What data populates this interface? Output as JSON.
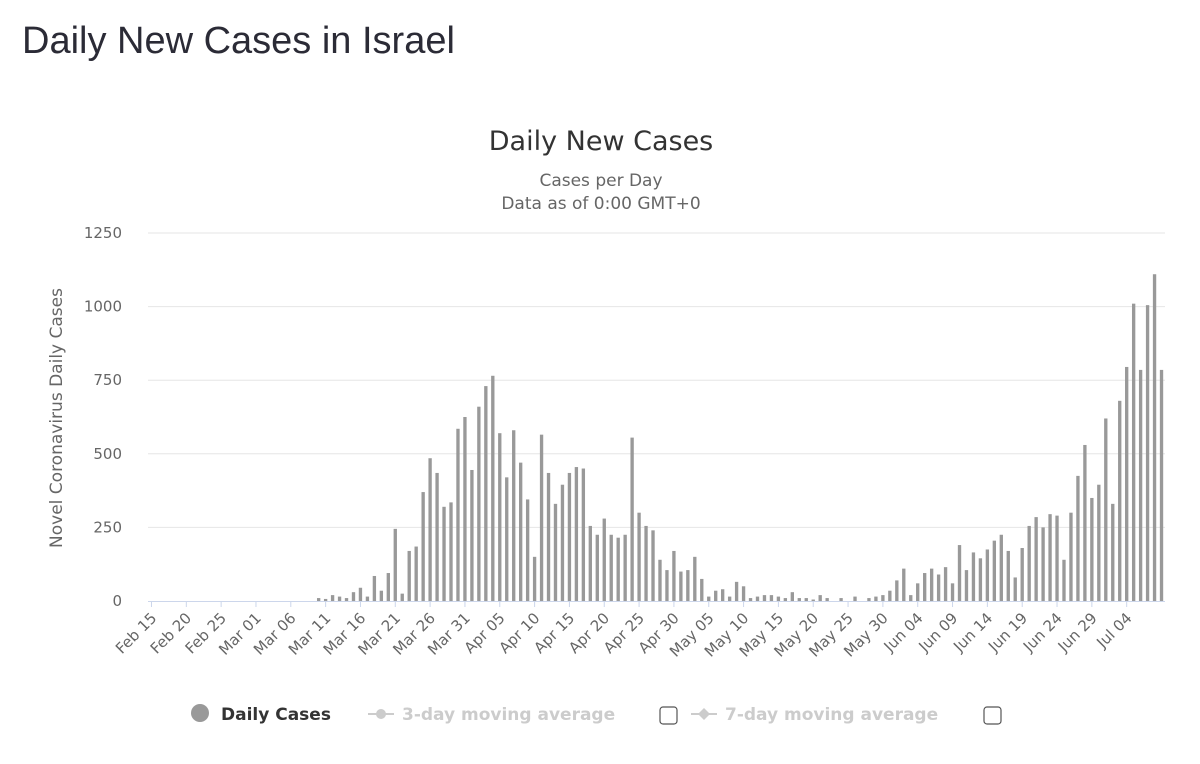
{
  "page": {
    "title": "Daily New Cases in Israel"
  },
  "colors": {
    "bar": "#999999",
    "grid": "#e6e6e6",
    "axis": "#ccd6eb",
    "legend_off": "#cccccc",
    "text": "#333333",
    "subtext": "#666666"
  },
  "chart_data": {
    "type": "bar",
    "title": "Daily New Cases",
    "subtitle": "Cases per Day",
    "subtitle2": "Data as of 0:00 GMT+0",
    "xlabel": "",
    "ylabel": "Novel Coronavirus Daily Cases",
    "ylim": [
      0,
      1250
    ],
    "yticks": [
      0,
      250,
      500,
      750,
      1000,
      1250
    ],
    "grid": true,
    "start_date": "Feb 15",
    "xtick_labels": [
      "Feb 15",
      "Feb 20",
      "Feb 25",
      "Mar 01",
      "Mar 06",
      "Mar 11",
      "Mar 16",
      "Mar 21",
      "Mar 26",
      "Mar 31",
      "Apr 05",
      "Apr 10",
      "Apr 15",
      "Apr 20",
      "Apr 25",
      "Apr 30",
      "May 05",
      "May 10",
      "May 15",
      "May 20",
      "May 25",
      "May 30",
      "Jun 04",
      "Jun 09",
      "Jun 14",
      "Jun 19",
      "Jun 24",
      "Jun 29",
      "Jul 04"
    ],
    "series": [
      {
        "name": "Daily Cases",
        "values": [
          0,
          0,
          0,
          0,
          0,
          0,
          0,
          0,
          0,
          0,
          0,
          0,
          0,
          0,
          0,
          0,
          0,
          0,
          0,
          0,
          0,
          0,
          0,
          0,
          10,
          7,
          20,
          15,
          10,
          30,
          45,
          15,
          85,
          35,
          95,
          245,
          25,
          170,
          185,
          370,
          485,
          435,
          320,
          335,
          585,
          625,
          445,
          660,
          730,
          765,
          570,
          420,
          580,
          470,
          345,
          150,
          565,
          435,
          330,
          395,
          435,
          455,
          450,
          255,
          225,
          280,
          225,
          215,
          225,
          555,
          300,
          255,
          240,
          140,
          105,
          170,
          100,
          105,
          150,
          75,
          15,
          35,
          40,
          15,
          65,
          50,
          10,
          15,
          20,
          20,
          15,
          10,
          30,
          10,
          10,
          5,
          20,
          10,
          0,
          10,
          0,
          15,
          0,
          10,
          15,
          20,
          35,
          70,
          110,
          20,
          60,
          95,
          110,
          90,
          115,
          60,
          190,
          105,
          165,
          145,
          175,
          205,
          225,
          170,
          80,
          180,
          255,
          285,
          250,
          295,
          290,
          140,
          300,
          425,
          530,
          350,
          395,
          620,
          330,
          680,
          795,
          1010,
          785,
          1005,
          1110,
          785
        ]
      }
    ],
    "legend": {
      "position": "bottom-center",
      "items": [
        {
          "label": "Daily Cases",
          "enabled": true
        },
        {
          "label": "3-day moving average",
          "enabled": false
        },
        {
          "label": "7-day moving average",
          "enabled": false
        }
      ]
    }
  }
}
